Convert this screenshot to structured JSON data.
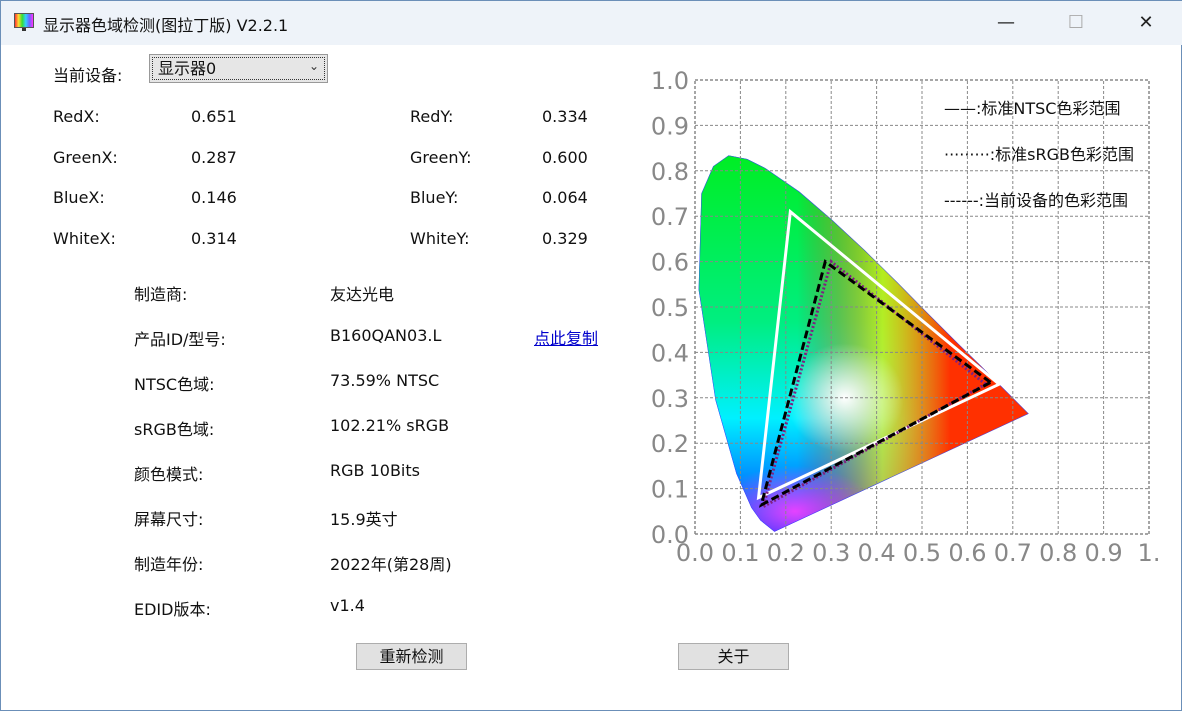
{
  "window": {
    "title": "显示器色域检测(图拉丁版) V2.2.1",
    "minimize": "—",
    "maximize": "☐",
    "close": "✕"
  },
  "device": {
    "label": "当前设备:",
    "selected": "显示器0"
  },
  "coords": [
    {
      "label": "RedX:",
      "value": "0.651",
      "label2": "RedY:",
      "value2": "0.334"
    },
    {
      "label": "GreenX:",
      "value": "0.287",
      "label2": "GreenY:",
      "value2": "0.600"
    },
    {
      "label": "BlueX:",
      "value": "0.146",
      "label2": "BlueY:",
      "value2": "0.064"
    },
    {
      "label": "WhiteX:",
      "value": "0.314",
      "label2": "WhiteY:",
      "value2": "0.329"
    }
  ],
  "info": [
    {
      "label": "制造商:",
      "value": "友达光电"
    },
    {
      "label": "产品ID/型号:",
      "value": "B160QAN03.L"
    },
    {
      "label": "NTSC色域:",
      "value": "73.59% NTSC"
    },
    {
      "label": "sRGB色域:",
      "value": "102.21% sRGB"
    },
    {
      "label": "颜色模式:",
      "value": "RGB 10Bits"
    },
    {
      "label": "屏幕尺寸:",
      "value": "15.9英寸"
    },
    {
      "label": "制造年份:",
      "value": "2022年(第28周)"
    },
    {
      "label": "EDID版本:",
      "value": "v1.4"
    }
  ],
  "copy_link": "点此复制",
  "buttons": {
    "redetect": "重新检测",
    "about": "关于"
  },
  "chart_data": {
    "type": "scatter",
    "title": "",
    "xlim": [
      0,
      1
    ],
    "ylim": [
      0,
      1
    ],
    "xticks": [
      "0.0",
      "0.1",
      "0.2",
      "0.3",
      "0.4",
      "0.5",
      "0.6",
      "0.7",
      "0.8",
      "0.9",
      "1."
    ],
    "yticks": [
      "0.0",
      "0.1",
      "0.2",
      "0.3",
      "0.4",
      "0.5",
      "0.6",
      "0.7",
      "0.8",
      "0.9",
      "1.0"
    ],
    "grid": true,
    "legend_position": "top-right",
    "legend": [
      "——:标准NTSC色彩范围",
      "·········:标准sRGB色彩范围",
      "------:当前设备的色彩范围"
    ],
    "series": [
      {
        "name": "标准NTSC色彩范围",
        "style": "solid-white",
        "points": [
          [
            0.67,
            0.33
          ],
          [
            0.21,
            0.71
          ],
          [
            0.14,
            0.08
          ]
        ]
      },
      {
        "name": "标准sRGB色彩范围",
        "style": "dotted-purple",
        "points": [
          [
            0.64,
            0.33
          ],
          [
            0.3,
            0.6
          ],
          [
            0.15,
            0.06
          ]
        ]
      },
      {
        "name": "当前设备的色彩范围",
        "style": "dashed-black",
        "points": [
          [
            0.651,
            0.334
          ],
          [
            0.287,
            0.6
          ],
          [
            0.146,
            0.064
          ]
        ]
      }
    ]
  }
}
